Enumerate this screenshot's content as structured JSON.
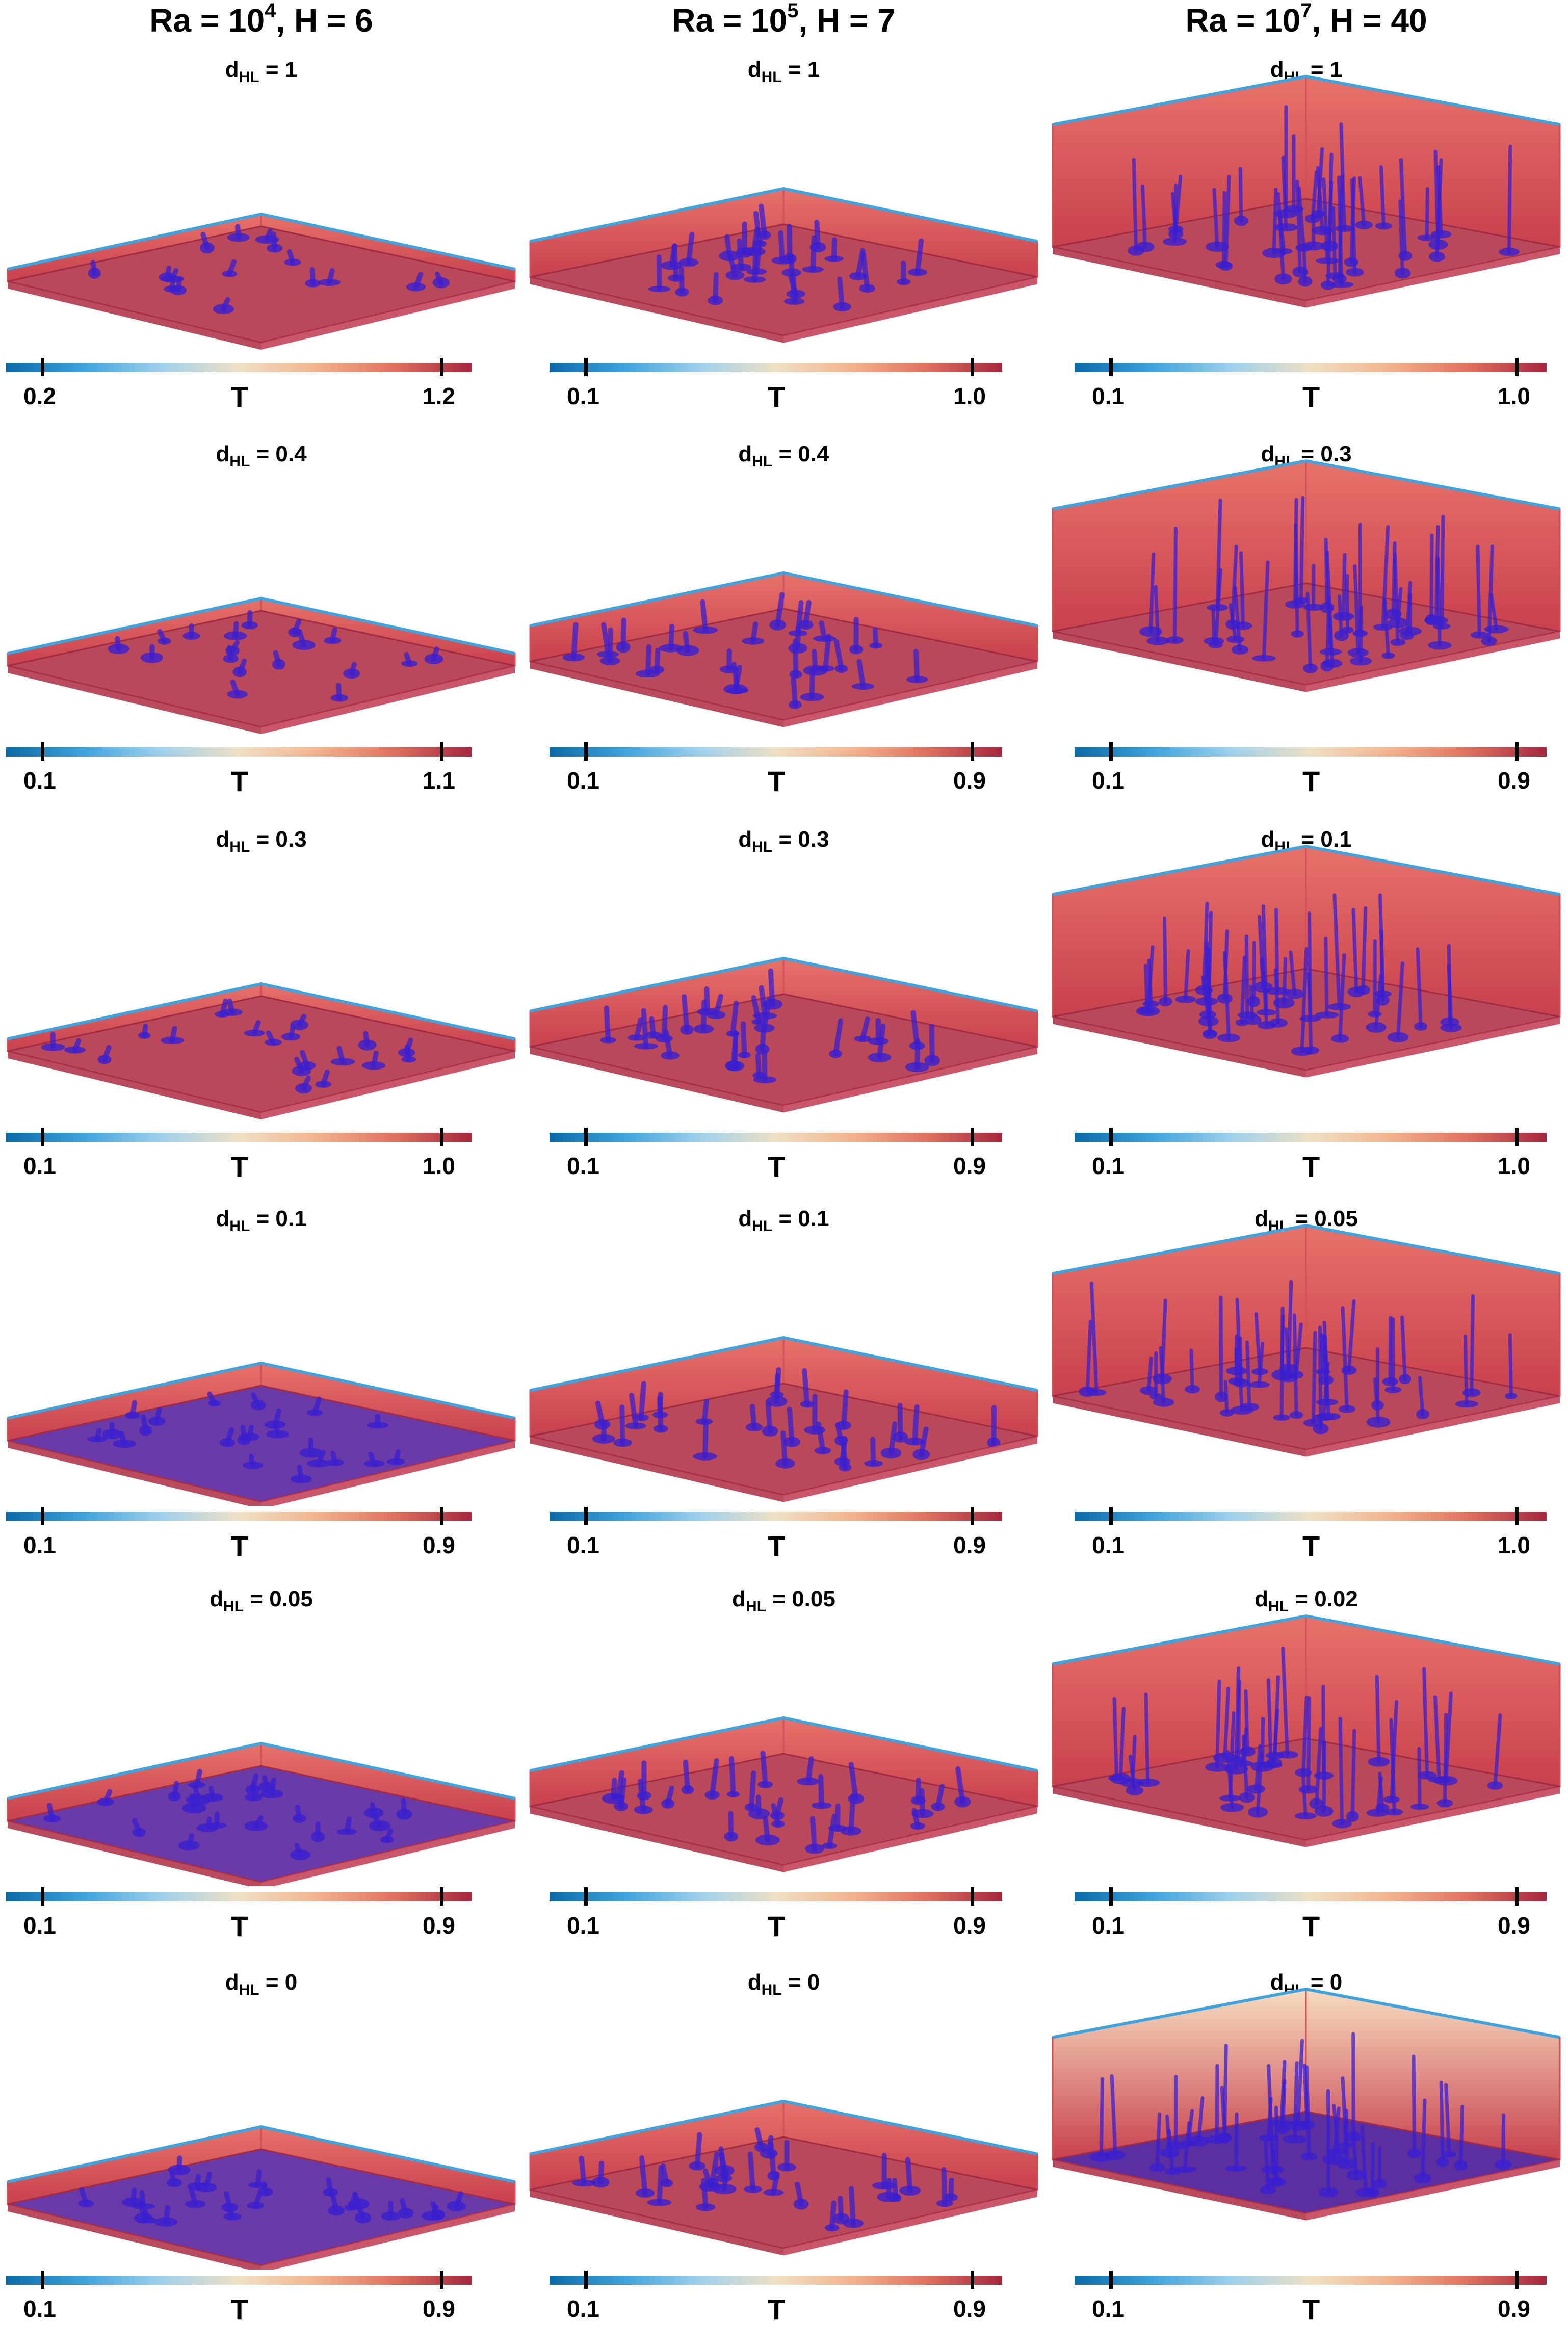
{
  "columns": [
    {
      "ra_base": "Ra = 10",
      "ra_exp": "4",
      "h_text": ", H = 6"
    },
    {
      "ra_base": "Ra = 10",
      "ra_exp": "5",
      "h_text": ", H = 7"
    },
    {
      "ra_base": "Ra = 10",
      "ra_exp": "7",
      "h_text": ", H = 40"
    }
  ],
  "colorbar_label": "T",
  "colorbar_colors": [
    "#0a6aa8",
    "#3fa3dd",
    "#9fd0ec",
    "#efe0c4",
    "#f2b38d",
    "#e0715f",
    "#a5263e"
  ],
  "iso_color": "#3a1fd0",
  "panels": [
    [
      {
        "d_prefix": "d",
        "d_sub": "HL",
        "d_value": " = 1",
        "cb_min": "0.2",
        "cb_max": "1.2"
      },
      {
        "d_prefix": "d",
        "d_sub": "HL",
        "d_value": " = 0.4",
        "cb_min": "0.1",
        "cb_max": "1.1"
      },
      {
        "d_prefix": "d",
        "d_sub": "HL",
        "d_value": " = 0.3",
        "cb_min": "0.1",
        "cb_max": "1.0"
      },
      {
        "d_prefix": "d",
        "d_sub": "HL",
        "d_value": " = 0.1",
        "cb_min": "0.1",
        "cb_max": "0.9"
      },
      {
        "d_prefix": "d",
        "d_sub": "HL",
        "d_value": " = 0.05",
        "cb_min": "0.1",
        "cb_max": "0.9"
      },
      {
        "d_prefix": "d",
        "d_sub": "HL",
        "d_value": " = 0",
        "cb_min": "0.1",
        "cb_max": "0.9"
      }
    ],
    [
      {
        "d_prefix": "d",
        "d_sub": "HL",
        "d_value": " = 1",
        "cb_min": "0.1",
        "cb_max": "1.0"
      },
      {
        "d_prefix": "d",
        "d_sub": "HL",
        "d_value": " = 0.4",
        "cb_min": "0.1",
        "cb_max": "0.9"
      },
      {
        "d_prefix": "d",
        "d_sub": "HL",
        "d_value": " = 0.3",
        "cb_min": "0.1",
        "cb_max": "0.9"
      },
      {
        "d_prefix": "d",
        "d_sub": "HL",
        "d_value": " = 0.1",
        "cb_min": "0.1",
        "cb_max": "0.9"
      },
      {
        "d_prefix": "d",
        "d_sub": "HL",
        "d_value": " = 0.05",
        "cb_min": "0.1",
        "cb_max": "0.9"
      },
      {
        "d_prefix": "d",
        "d_sub": "HL",
        "d_value": " = 0",
        "cb_min": "0.1",
        "cb_max": "0.9"
      }
    ],
    [
      {
        "d_prefix": "d",
        "d_sub": "HL",
        "d_value": " = 1",
        "cb_min": "0.1",
        "cb_max": "1.0"
      },
      {
        "d_prefix": "d",
        "d_sub": "HL",
        "d_value": " = 0.3",
        "cb_min": "0.1",
        "cb_max": "0.9"
      },
      {
        "d_prefix": "d",
        "d_sub": "HL",
        "d_value": " = 0.1",
        "cb_min": "0.1",
        "cb_max": "1.0"
      },
      {
        "d_prefix": "d",
        "d_sub": "HL",
        "d_value": " = 0.05",
        "cb_min": "0.1",
        "cb_max": "1.0"
      },
      {
        "d_prefix": "d",
        "d_sub": "HL",
        "d_value": " = 0.02",
        "cb_min": "0.1",
        "cb_max": "0.9"
      },
      {
        "d_prefix": "d",
        "d_sub": "HL",
        "d_value": " = 0",
        "cb_min": "0.1",
        "cb_max": "0.9"
      }
    ]
  ]
}
